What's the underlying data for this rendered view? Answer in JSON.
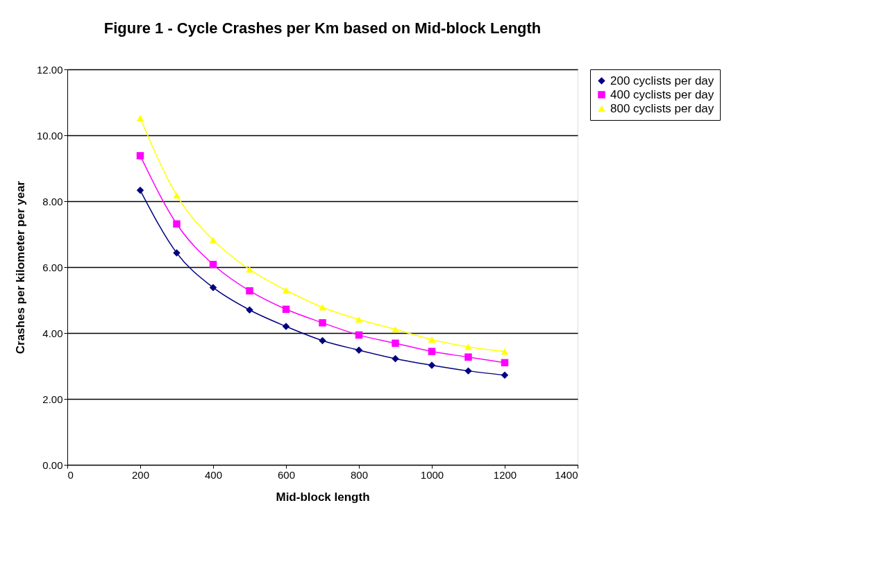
{
  "chart_data": {
    "type": "line",
    "title": "Figure 1 - Cycle Crashes per Km based on Mid-block Length",
    "xlabel": "Mid-block length",
    "ylabel": "Crashes per kilometer per year",
    "x": [
      200,
      300,
      400,
      500,
      600,
      700,
      800,
      900,
      1000,
      1100,
      1200
    ],
    "series": [
      {
        "name": "200 cyclists per day",
        "color": "#000080",
        "marker": "diamond",
        "values": [
          8.33,
          6.43,
          5.38,
          4.7,
          4.2,
          3.77,
          3.48,
          3.22,
          3.02,
          2.85,
          2.72
        ]
      },
      {
        "name": "400 cyclists per day",
        "color": "#ff00ff",
        "marker": "square",
        "values": [
          9.38,
          7.31,
          6.08,
          5.28,
          4.72,
          4.31,
          3.94,
          3.69,
          3.44,
          3.27,
          3.1
        ]
      },
      {
        "name": "800 cyclists per day",
        "color": "#ffff00",
        "marker": "triangle",
        "values": [
          10.52,
          8.18,
          6.82,
          5.93,
          5.3,
          4.78,
          4.41,
          4.11,
          3.8,
          3.58,
          3.44
        ]
      }
    ],
    "xlim": [
      0,
      1400
    ],
    "xticks": [
      0,
      200,
      400,
      600,
      800,
      1000,
      1200,
      1400
    ],
    "ylim": [
      0,
      12
    ],
    "yticks": [
      {
        "value": 0,
        "label": "0.00"
      },
      {
        "value": 2,
        "label": "2.00"
      },
      {
        "value": 4,
        "label": "4.00"
      },
      {
        "value": 6,
        "label": "6.00"
      },
      {
        "value": 8,
        "label": "8.00"
      },
      {
        "value": 10,
        "label": "10.00"
      },
      {
        "value": 12,
        "label": "12.00"
      }
    ],
    "grid": "y",
    "legend": "right",
    "line_style": "solid"
  }
}
